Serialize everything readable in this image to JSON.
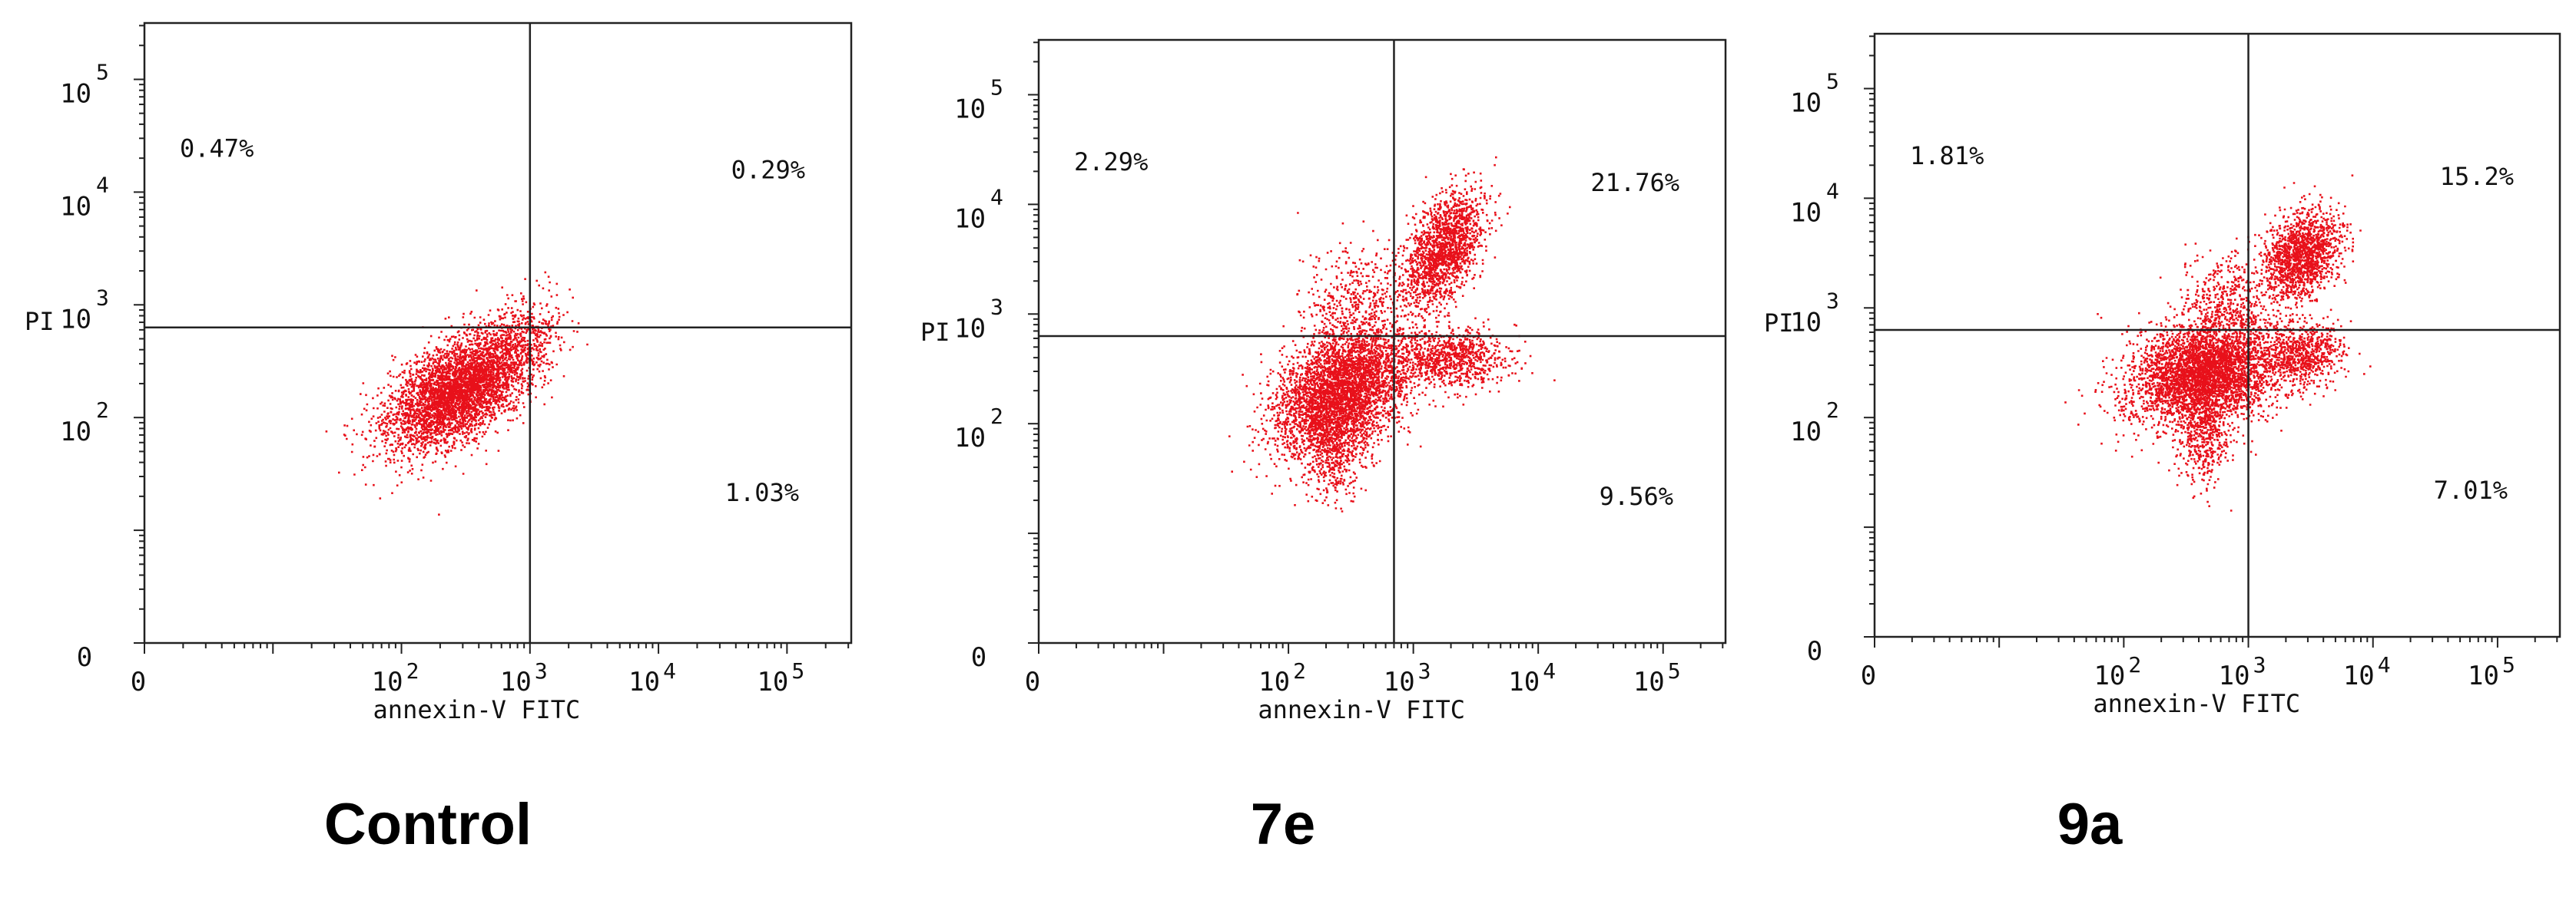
{
  "chart_data": [
    {
      "type": "scatter",
      "panel_label": "Control",
      "xlabel": "annexin-V FITC",
      "ylabel": "PI",
      "x_scale": "log",
      "y_scale": "log",
      "xlim": [
        1,
        316228
      ],
      "ylim": [
        1,
        316228
      ],
      "x_ticks": [
        {
          "base": "0",
          "exp": "",
          "value": 1
        },
        {
          "base": "10",
          "exp": "2",
          "value": 100
        },
        {
          "base": "10",
          "exp": "3",
          "value": 1000
        },
        {
          "base": "10",
          "exp": "4",
          "value": 10000
        },
        {
          "base": "10",
          "exp": "5",
          "value": 100000
        }
      ],
      "y_ticks": [
        {
          "base": "0",
          "exp": "",
          "value": 1
        },
        {
          "base": "10",
          "exp": "2",
          "value": 100
        },
        {
          "base": "10",
          "exp": "3",
          "value": 1000
        },
        {
          "base": "10",
          "exp": "4",
          "value": 10000
        },
        {
          "base": "10",
          "exp": "5",
          "value": 100000
        }
      ],
      "gate": {
        "x": 1000,
        "y": 630
      },
      "quadrants": {
        "upper_left": "0.47%",
        "upper_right": "0.29%",
        "lower_right": "1.03%"
      },
      "populations": [
        {
          "cx": 280,
          "cy": 180,
          "sx": 0.28,
          "sy": 0.26,
          "n": 4200,
          "rho": 0.55,
          "color": "#e8101a"
        },
        {
          "cx": 800,
          "cy": 500,
          "sx": 0.18,
          "sy": 0.22,
          "n": 350,
          "rho": 0.3,
          "color": "#e8101a"
        }
      ]
    },
    {
      "type": "scatter",
      "panel_label": "7e",
      "xlabel": "annexin-V FITC",
      "ylabel": "PI",
      "x_scale": "log",
      "y_scale": "log",
      "xlim": [
        1,
        316228
      ],
      "ylim": [
        1,
        316228
      ],
      "x_ticks": [
        {
          "base": "0",
          "exp": "",
          "value": 1
        },
        {
          "base": "10",
          "exp": "2",
          "value": 100
        },
        {
          "base": "10",
          "exp": "3",
          "value": 1000
        },
        {
          "base": "10",
          "exp": "4",
          "value": 10000
        },
        {
          "base": "10",
          "exp": "5",
          "value": 100000
        }
      ],
      "y_ticks": [
        {
          "base": "0",
          "exp": "",
          "value": 1
        },
        {
          "base": "10",
          "exp": "2",
          "value": 100
        },
        {
          "base": "10",
          "exp": "3",
          "value": 1000
        },
        {
          "base": "10",
          "exp": "4",
          "value": 10000
        },
        {
          "base": "10",
          "exp": "5",
          "value": 100000
        }
      ],
      "gate": {
        "x": 700,
        "y": 630
      },
      "quadrants": {
        "upper_left": "2.29%",
        "upper_right": "21.76%",
        "lower_right": "9.56%"
      },
      "populations": [
        {
          "cx": 260,
          "cy": 200,
          "sx": 0.26,
          "sy": 0.28,
          "n": 3800,
          "rho": 0.35,
          "color": "#e8101a"
        },
        {
          "cx": 230,
          "cy": 70,
          "sx": 0.12,
          "sy": 0.25,
          "n": 500,
          "rho": 0.0,
          "color": "#e8101a"
        },
        {
          "cx": 1700,
          "cy": 3800,
          "sx": 0.16,
          "sy": 0.26,
          "n": 1700,
          "rho": 0.5,
          "color": "#e8101a"
        },
        {
          "cx": 1900,
          "cy": 400,
          "sx": 0.24,
          "sy": 0.14,
          "n": 900,
          "rho": 0.0,
          "color": "#e8101a"
        },
        {
          "cx": 350,
          "cy": 1300,
          "sx": 0.22,
          "sy": 0.26,
          "n": 450,
          "rho": 0.0,
          "color": "#e8101a"
        }
      ]
    },
    {
      "type": "scatter",
      "panel_label": "9a",
      "xlabel": "annexin-V FITC",
      "ylabel": "PI",
      "x_scale": "log",
      "y_scale": "log",
      "xlim": [
        1,
        316228
      ],
      "ylim": [
        1,
        316228
      ],
      "x_ticks": [
        {
          "base": "0",
          "exp": "",
          "value": 1
        },
        {
          "base": "10",
          "exp": "2",
          "value": 100
        },
        {
          "base": "10",
          "exp": "3",
          "value": 1000
        },
        {
          "base": "10",
          "exp": "4",
          "value": 10000
        },
        {
          "base": "10",
          "exp": "5",
          "value": 100000
        }
      ],
      "y_ticks": [
        {
          "base": "0",
          "exp": "",
          "value": 1
        },
        {
          "base": "10",
          "exp": "2",
          "value": 100
        },
        {
          "base": "10",
          "exp": "3",
          "value": 1000
        },
        {
          "base": "10",
          "exp": "4",
          "value": 10000
        },
        {
          "base": "10",
          "exp": "5",
          "value": 100000
        }
      ],
      "gate": {
        "x": 1000,
        "y": 630
      },
      "quadrants": {
        "upper_left": "1.81%",
        "upper_right": "15.2%",
        "lower_right": "7.01%"
      },
      "populations": [
        {
          "cx": 440,
          "cy": 260,
          "sx": 0.3,
          "sy": 0.24,
          "n": 4000,
          "rho": 0.2,
          "color": "#e8101a"
        },
        {
          "cx": 430,
          "cy": 70,
          "sx": 0.1,
          "sy": 0.22,
          "n": 450,
          "rho": 0.0,
          "color": "#e8101a"
        },
        {
          "cx": 2600,
          "cy": 3000,
          "sx": 0.16,
          "sy": 0.2,
          "n": 1500,
          "rho": 0.3,
          "color": "#e8101a"
        },
        {
          "cx": 2700,
          "cy": 380,
          "sx": 0.16,
          "sy": 0.14,
          "n": 700,
          "rho": 0.0,
          "color": "#e8101a"
        },
        {
          "cx": 650,
          "cy": 1300,
          "sx": 0.16,
          "sy": 0.22,
          "n": 350,
          "rho": 0.0,
          "color": "#e8101a"
        }
      ]
    }
  ]
}
